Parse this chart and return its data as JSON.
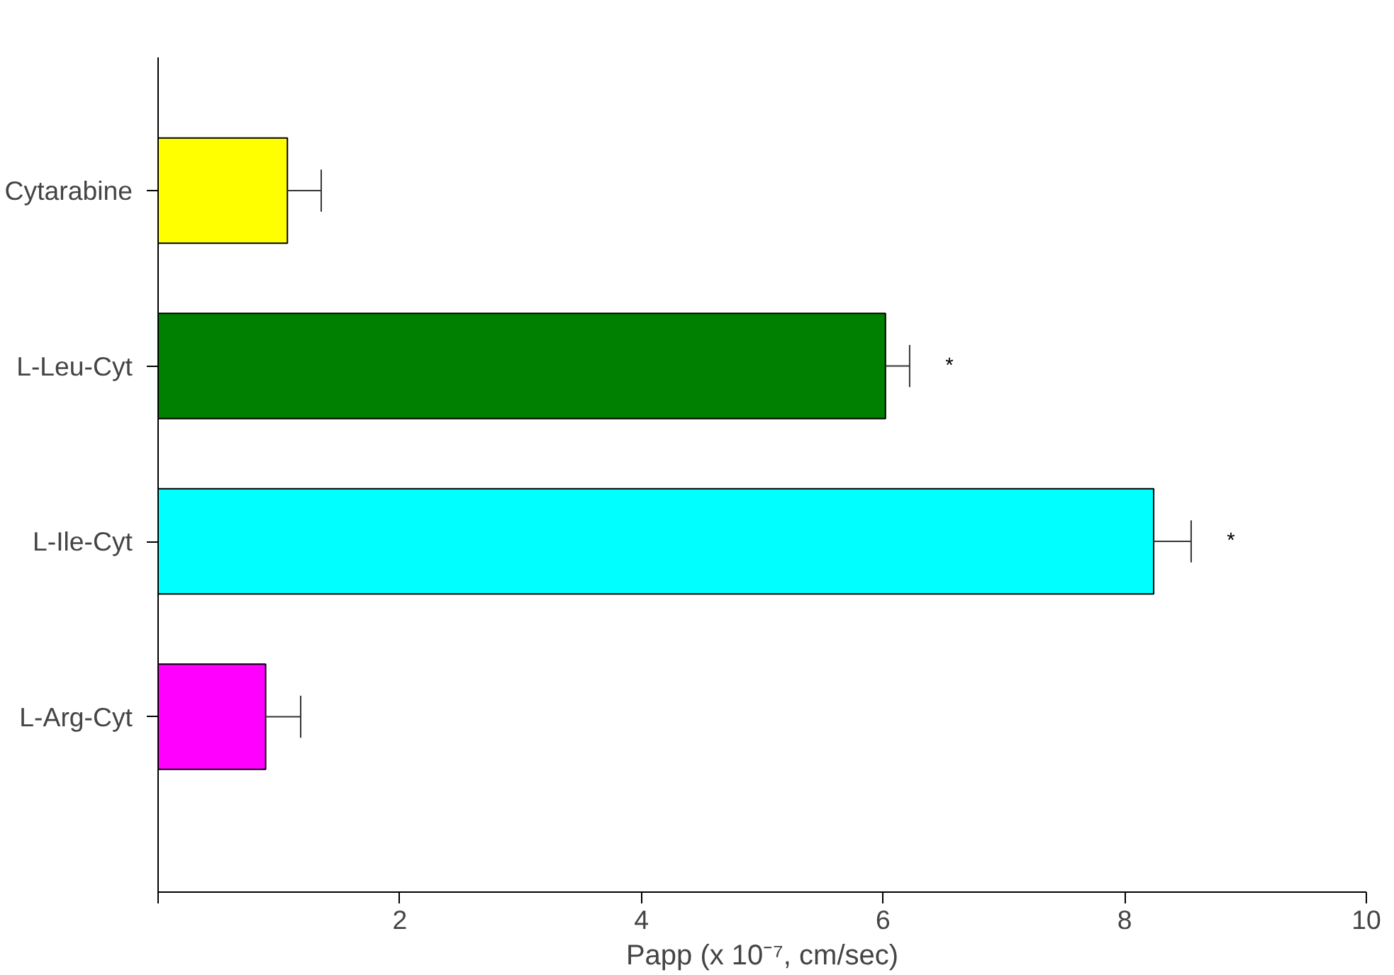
{
  "chart_data": {
    "type": "bar",
    "orientation": "horizontal",
    "xlabel": "Papp (x 10⁻⁷, cm/sec)",
    "categories": [
      "Cytarabine",
      "L-Leu-Cyt",
      "L-Ile-Cyt",
      "L-Arg-Cyt"
    ],
    "values": [
      1.07,
      6.02,
      8.24,
      0.89
    ],
    "colors": [
      "#ffff00",
      "#008000",
      "#00ffff",
      "#ff00ff"
    ],
    "errors": [
      [
        1.07,
        1.35
      ],
      [
        6.02,
        6.22
      ],
      [
        8.24,
        8.55
      ],
      [
        0.89,
        1.18
      ]
    ],
    "xlim": [
      0,
      10
    ],
    "xticks": [
      {
        "value": 0,
        "label": null
      },
      2,
      4,
      6,
      8,
      10
    ],
    "annotations": [
      "*",
      "*"
    ],
    "grid": false
  }
}
